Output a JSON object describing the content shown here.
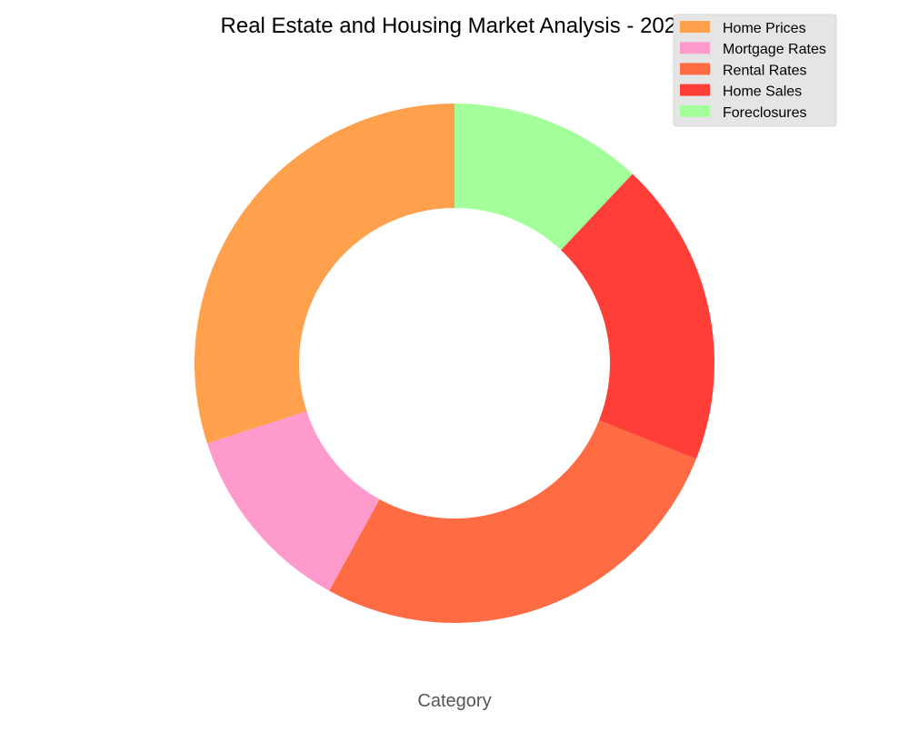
{
  "chart_data": {
    "type": "pie",
    "donut": true,
    "title": "Real Estate and Housing Market Analysis - 2021",
    "xlabel": "Category",
    "ylabel": "",
    "labels": [
      "Home Prices",
      "Mortgage Rates",
      "Rental Rates",
      "Home Sales",
      "Foreclosures"
    ],
    "values": [
      30,
      12,
      27,
      19,
      12
    ],
    "colors": [
      "#FFA04D",
      "#FF9ACC",
      "#FF6B42",
      "#FF3E38",
      "#A3FF9A"
    ],
    "start_angle_deg": 90,
    "direction": "counterclockwise",
    "legend_position": "upper right",
    "legend_background": "#E5E5E5"
  }
}
